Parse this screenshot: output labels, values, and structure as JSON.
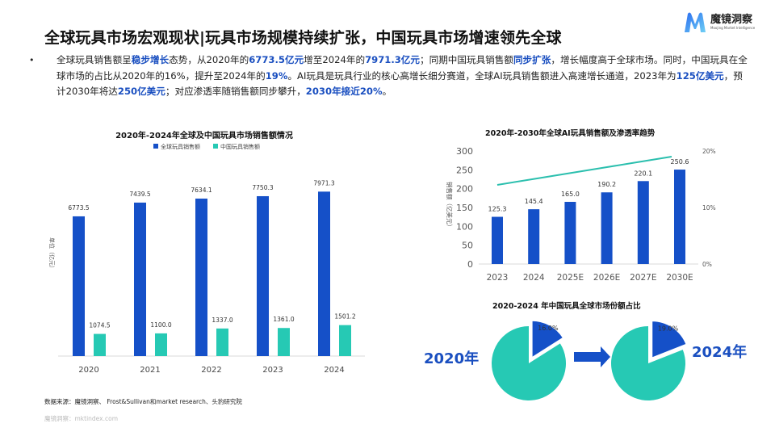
{
  "header": {
    "title": "全球玩具市场宏观现状|玩具市场规模持续扩张，中国玩具市场增速领先全球",
    "logo_cn": "魔镜洞察",
    "logo_en": "Moojing Market Intelligence"
  },
  "summary": {
    "segments": [
      {
        "text": "全球玩具销售额呈",
        "hl": false
      },
      {
        "text": "稳步增长",
        "hl": true
      },
      {
        "text": "态势，从2020年的",
        "hl": false
      },
      {
        "text": "6773.5亿元",
        "hl": true
      },
      {
        "text": "增至2024年的",
        "hl": false
      },
      {
        "text": "7971.3亿元",
        "hl": true
      },
      {
        "text": "；同期中国玩具销售额",
        "hl": false
      },
      {
        "text": "同步扩张",
        "hl": true
      },
      {
        "text": "，增长幅度高于全球市场。同时，中国玩具在全球市场的占比从2020年的16%，提升至2024年的",
        "hl": false
      },
      {
        "text": "19%",
        "hl": true
      },
      {
        "text": "。AI玩具是玩具行业的核心高增长细分赛道，全球AI玩具销售额进入高速增长通道，2023年为",
        "hl": false
      },
      {
        "text": "125亿美元",
        "hl": true
      },
      {
        "text": "，预计2030年将达",
        "hl": false
      },
      {
        "text": "250亿美元",
        "hl": true
      },
      {
        "text": "；对应渗透率随销售额同步攀升，",
        "hl": false
      },
      {
        "text": "2030年接近20%",
        "hl": true
      },
      {
        "text": "。",
        "hl": false
      }
    ]
  },
  "colors": {
    "blue": "#1550c8",
    "teal": "#26c9b4",
    "highlight": "#1a4fc0"
  },
  "chart_data": [
    {
      "type": "bar",
      "title": "2020年-2024年全球及中国玩具市场销售额情况",
      "ylabel": "单位（亿元）",
      "categories": [
        "2020",
        "2021",
        "2022",
        "2023",
        "2024"
      ],
      "series": [
        {
          "name": "全球玩具销售额",
          "values": [
            6773.5,
            7439.5,
            7634.1,
            7750.3,
            7971.3
          ],
          "labels": [
            "6773.5",
            "7439.5",
            "7634.1",
            "7750.3",
            "7971.3"
          ]
        },
        {
          "name": "中国玩具销售额",
          "values": [
            1074.5,
            1100.0,
            1337.0,
            1361.0,
            1501.2
          ],
          "labels": [
            "1074.5",
            "1100.0",
            "1337.0",
            "1361.0",
            "1501.2"
          ]
        }
      ],
      "ylim": [
        0,
        8600
      ],
      "legend": "top",
      "grid": false
    },
    {
      "type": "bar+line",
      "title": "2020年-2030年全球AI玩具销售额及渗透率趋势",
      "ylabel": "销售额（亿美元）",
      "categories": [
        "2023",
        "2024",
        "2025E",
        "2026E",
        "2027E",
        "2030E"
      ],
      "bar_values": [
        125.3,
        145.4,
        165.0,
        190.2,
        220.1,
        250.6
      ],
      "bar_labels": [
        "125.3",
        "145.4",
        "165.0",
        "190.2",
        "220.1",
        "250.6"
      ],
      "line_values": [
        14.0,
        15.0,
        16.0,
        17.0,
        18.0,
        19.0
      ],
      "ylim": [
        0,
        300
      ],
      "yticks": [
        "0",
        "50",
        "100",
        "150",
        "200",
        "250",
        "300"
      ],
      "y2lim": [
        0,
        20
      ],
      "y2ticks": [
        "0%",
        "10%",
        "20%"
      ],
      "grid": false
    },
    {
      "type": "pie",
      "title": "2020-2024 年中国玩具全球市场份额占比",
      "pies": [
        {
          "label": "2020年",
          "share": 16.0,
          "share_label": "16.0%"
        },
        {
          "label": "2024年",
          "share": 19.0,
          "share_label": "19.0%"
        }
      ]
    }
  ],
  "footer": {
    "source": "数据来源：魔镜洞察、 Frost&Sullivan和market research、头豹研究院",
    "watermark": "魔镜洞察：mktindex.com"
  }
}
